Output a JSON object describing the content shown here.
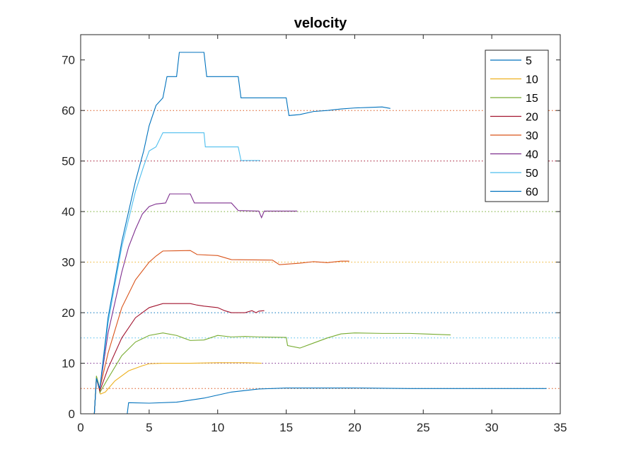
{
  "chart_data": {
    "type": "line",
    "title": "velocity",
    "xlabel": "",
    "ylabel": "",
    "xlim": [
      0,
      35
    ],
    "ylim": [
      0,
      75
    ],
    "x_ticks": [
      "0",
      "5",
      "10",
      "15",
      "20",
      "25",
      "30",
      "35"
    ],
    "y_ticks": [
      "0",
      "10",
      "20",
      "30",
      "40",
      "50",
      "60",
      "70"
    ],
    "legend_position": "top-right",
    "grid": false,
    "reference_lines": [
      {
        "y": 5,
        "color": "#D95319"
      },
      {
        "y": 10,
        "color": "#7E2F8E"
      },
      {
        "y": 15,
        "color": "#4DBEEE"
      },
      {
        "y": 20,
        "color": "#0072BD"
      },
      {
        "y": 30,
        "color": "#EDB120"
      },
      {
        "y": 40,
        "color": "#77AC30"
      },
      {
        "y": 50,
        "color": "#A2142F"
      },
      {
        "y": 60,
        "color": "#D95319"
      }
    ],
    "series": [
      {
        "name": "5",
        "color": "#0072BD",
        "points": [
          [
            1.0,
            0
          ],
          [
            3.4,
            0
          ],
          [
            3.5,
            2.2
          ],
          [
            5,
            2.1
          ],
          [
            7,
            2.3
          ],
          [
            9,
            3.1
          ],
          [
            11,
            4.3
          ],
          [
            13,
            4.9
          ],
          [
            15,
            5.1
          ],
          [
            20,
            5.1
          ],
          [
            24,
            5.0
          ],
          [
            28,
            5.0
          ],
          [
            34,
            5.0
          ]
        ]
      },
      {
        "name": "10",
        "color": "#EDB120",
        "points": [
          [
            1.0,
            0
          ],
          [
            1.15,
            7
          ],
          [
            1.3,
            5.5
          ],
          [
            1.45,
            3.9
          ],
          [
            1.8,
            4.3
          ],
          [
            2.5,
            6.5
          ],
          [
            3.5,
            8.5
          ],
          [
            4.5,
            9.5
          ],
          [
            5,
            9.9
          ],
          [
            6,
            10.0
          ],
          [
            8,
            10.0
          ],
          [
            10,
            10.1
          ],
          [
            12,
            10.1
          ],
          [
            13.2,
            10.0
          ]
        ]
      },
      {
        "name": "15",
        "color": "#77AC30",
        "points": [
          [
            1.0,
            0
          ],
          [
            1.15,
            7.5
          ],
          [
            1.3,
            6
          ],
          [
            1.4,
            4.2
          ],
          [
            2,
            7
          ],
          [
            3,
            11.5
          ],
          [
            4,
            14.2
          ],
          [
            5,
            15.5
          ],
          [
            6,
            16.0
          ],
          [
            7,
            15.5
          ],
          [
            8,
            14.5
          ],
          [
            9,
            14.6
          ],
          [
            10,
            15.5
          ],
          [
            11,
            15.2
          ],
          [
            12,
            15.3
          ],
          [
            13,
            15.2
          ],
          [
            15,
            15.1
          ],
          [
            15.1,
            13.5
          ],
          [
            16,
            13.0
          ],
          [
            17,
            14
          ],
          [
            18,
            15
          ],
          [
            19,
            15.8
          ],
          [
            20,
            16.0
          ],
          [
            22,
            15.9
          ],
          [
            24,
            15.9
          ],
          [
            25,
            15.8
          ],
          [
            27,
            15.6
          ]
        ]
      },
      {
        "name": "20",
        "color": "#A2142F",
        "points": [
          [
            1.0,
            0
          ],
          [
            1.15,
            7
          ],
          [
            1.4,
            4.5
          ],
          [
            2,
            9
          ],
          [
            3,
            15
          ],
          [
            4,
            19
          ],
          [
            5,
            21
          ],
          [
            6,
            21.8
          ],
          [
            8,
            21.8
          ],
          [
            8.5,
            21.5
          ],
          [
            9,
            21.3
          ],
          [
            10,
            21.0
          ],
          [
            10.5,
            20.4
          ],
          [
            11,
            20.0
          ],
          [
            12,
            20.0
          ],
          [
            12.5,
            20.4
          ],
          [
            12.8,
            20.0
          ],
          [
            13,
            20.3
          ],
          [
            13.4,
            20.4
          ]
        ]
      },
      {
        "name": "30",
        "color": "#D95319",
        "points": [
          [
            1.0,
            0
          ],
          [
            1.15,
            7
          ],
          [
            1.4,
            5
          ],
          [
            2,
            12
          ],
          [
            3,
            21
          ],
          [
            4,
            26.5
          ],
          [
            5,
            30
          ],
          [
            5.5,
            31.2
          ],
          [
            6,
            32.2
          ],
          [
            8,
            32.3
          ],
          [
            8.5,
            31.5
          ],
          [
            10,
            31.3
          ],
          [
            11,
            30.5
          ],
          [
            14,
            30.4
          ],
          [
            14.5,
            29.5
          ],
          [
            16,
            29.8
          ],
          [
            17,
            30.1
          ],
          [
            18,
            29.9
          ],
          [
            19,
            30.2
          ],
          [
            19.6,
            30.2
          ]
        ]
      },
      {
        "name": "40",
        "color": "#7E2F8E",
        "points": [
          [
            1.0,
            0
          ],
          [
            1.15,
            7
          ],
          [
            1.4,
            5
          ],
          [
            2,
            16
          ],
          [
            3,
            28
          ],
          [
            3.5,
            33
          ],
          [
            4,
            36.5
          ],
          [
            4.5,
            39.5
          ],
          [
            5,
            41
          ],
          [
            5.5,
            41.5
          ],
          [
            6.2,
            41.7
          ],
          [
            6.5,
            43.5
          ],
          [
            8,
            43.5
          ],
          [
            8.3,
            41.7
          ],
          [
            11,
            41.7
          ],
          [
            11.5,
            40.2
          ],
          [
            13,
            40.1
          ],
          [
            13.2,
            38.8
          ],
          [
            13.4,
            40.1
          ],
          [
            15,
            40.1
          ],
          [
            15.8,
            40.1
          ]
        ]
      },
      {
        "name": "50",
        "color": "#4DBEEE",
        "points": [
          [
            1.0,
            0
          ],
          [
            1.15,
            7
          ],
          [
            1.4,
            5
          ],
          [
            2,
            18
          ],
          [
            3,
            33
          ],
          [
            4,
            44
          ],
          [
            4.6,
            49
          ],
          [
            5,
            52
          ],
          [
            5.5,
            52.8
          ],
          [
            6,
            55.6
          ],
          [
            9,
            55.6
          ],
          [
            9.1,
            52.8
          ],
          [
            11.5,
            52.8
          ],
          [
            11.7,
            50.1
          ],
          [
            12.5,
            50.1
          ],
          [
            13.1,
            50.1
          ]
        ]
      },
      {
        "name": "60",
        "color": "#0072BD",
        "points": [
          [
            1.0,
            0
          ],
          [
            1.15,
            7
          ],
          [
            1.4,
            5
          ],
          [
            2,
            19
          ],
          [
            3,
            34
          ],
          [
            4,
            46
          ],
          [
            4.6,
            52
          ],
          [
            5,
            57
          ],
          [
            5.5,
            61
          ],
          [
            6,
            62.5
          ],
          [
            6.3,
            66.7
          ],
          [
            7,
            66.7
          ],
          [
            7.2,
            71.5
          ],
          [
            9,
            71.5
          ],
          [
            9.2,
            66.7
          ],
          [
            11.5,
            66.7
          ],
          [
            11.7,
            62.5
          ],
          [
            15,
            62.5
          ],
          [
            15.2,
            59
          ],
          [
            16,
            59.2
          ],
          [
            17,
            59.8
          ],
          [
            18,
            60
          ],
          [
            19,
            60.3
          ],
          [
            20,
            60.5
          ],
          [
            21,
            60.6
          ],
          [
            22,
            60.7
          ],
          [
            22.6,
            60.4
          ]
        ]
      }
    ]
  }
}
